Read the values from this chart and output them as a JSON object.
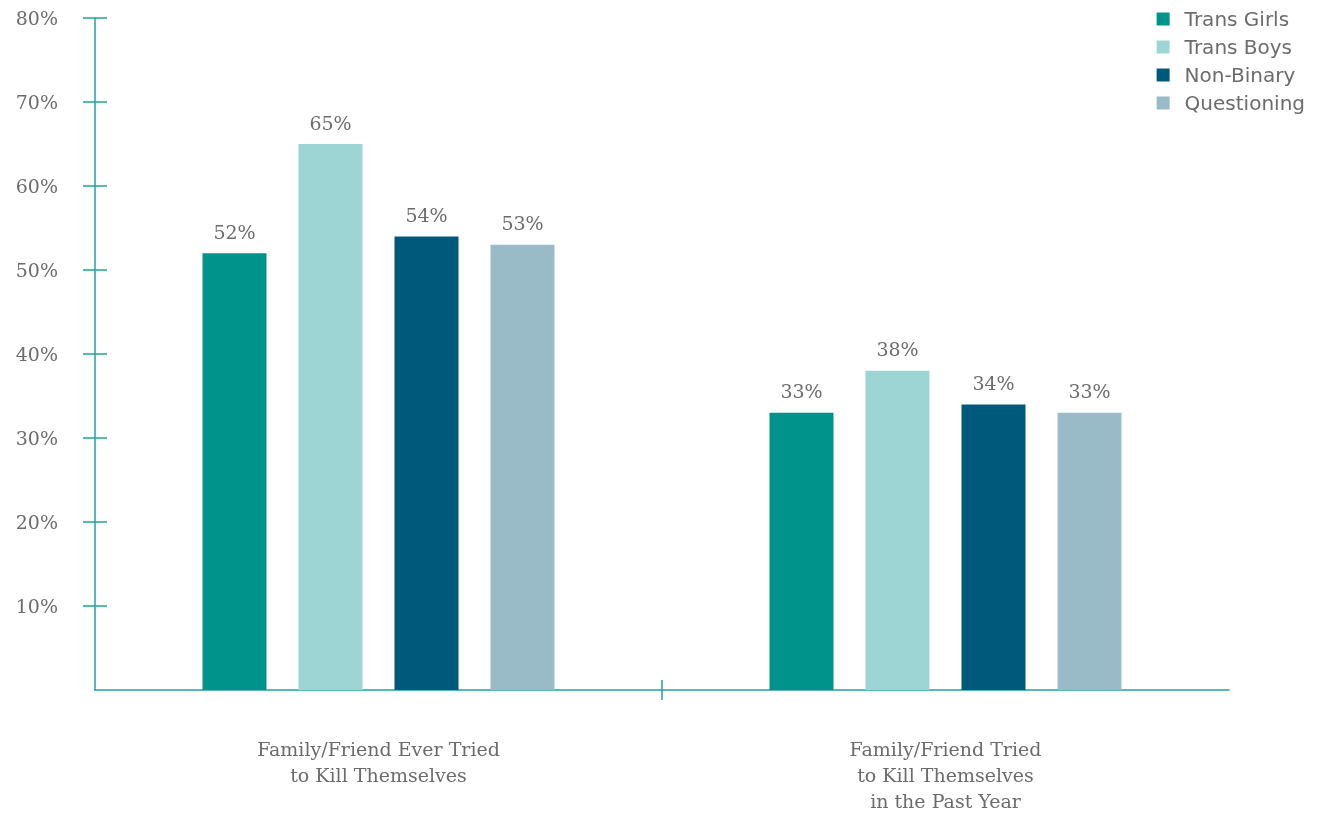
{
  "chart_data": {
    "type": "bar",
    "categories": [
      "Family/Friend Ever Tried\nto Kill Themselves",
      "Family/Friend Tried\nto Kill Themselves\nin the Past Year"
    ],
    "series": [
      {
        "name": "Trans Girls",
        "color": "#00938c",
        "values": [
          52,
          33
        ],
        "value_labels": [
          "52%",
          "33%"
        ]
      },
      {
        "name": "Trans Boys",
        "color": "#9cd5d3",
        "values": [
          65,
          38
        ],
        "value_labels": [
          "65%",
          "38%"
        ]
      },
      {
        "name": "Non-Binary",
        "color": "#00587a",
        "values": [
          54,
          34
        ],
        "value_labels": [
          "54%",
          "34%"
        ]
      },
      {
        "name": "Questioning",
        "color": "#99bbc7",
        "values": [
          53,
          33
        ],
        "value_labels": [
          "53%",
          "33%"
        ]
      }
    ],
    "ylim": [
      0,
      80
    ],
    "yticks": [
      {
        "value": 10,
        "label": "10%"
      },
      {
        "value": 20,
        "label": "20%"
      },
      {
        "value": 30,
        "label": "30%"
      },
      {
        "value": 40,
        "label": "40%"
      },
      {
        "value": 50,
        "label": "50%"
      },
      {
        "value": 60,
        "label": "60%"
      },
      {
        "value": 70,
        "label": "70%"
      },
      {
        "value": 80,
        "label": "80%"
      }
    ],
    "grid": false,
    "legend": "top right"
  }
}
